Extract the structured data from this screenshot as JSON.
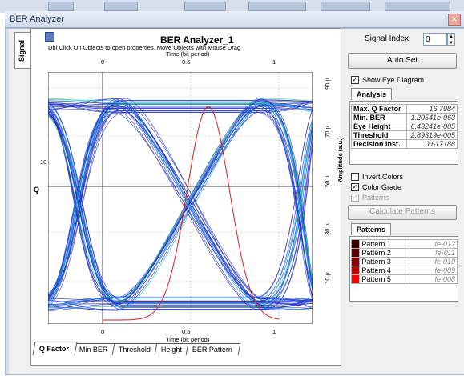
{
  "window": {
    "title": "BER Analyzer"
  },
  "plot": {
    "title": "BER Analyzer_1",
    "hint": "Dbl Click On Objects to open properties.  Move Objects with Mouse Drag",
    "x_axis_title": "Time (bit period)",
    "left_axis_label": "Q",
    "right_axis_label": "Amplitude (a.u.)",
    "x_ticks": [
      "0",
      "0.5",
      "1"
    ],
    "left_ticks": [
      "10"
    ],
    "right_ticks": [
      "90 µ",
      "70 µ",
      "50 µ",
      "30 µ",
      "10 µ"
    ],
    "side_tab": "Signal"
  },
  "bottom_tabs": [
    "Q Factor",
    "Min BER",
    "Threshold",
    "Height",
    "BER Pattern"
  ],
  "signal_index": {
    "label": "Signal Index:",
    "value": "0"
  },
  "auto_set_label": "Auto Set",
  "show_eye": {
    "label": "Show Eye Diagram",
    "checked": true
  },
  "analysis": {
    "tab": "Analysis",
    "rows": [
      {
        "key": "Max. Q Factor",
        "value": "16.7984"
      },
      {
        "key": "Min. BER",
        "value": "1.20541e-063"
      },
      {
        "key": "Eye Height",
        "value": "6.43241e-005"
      },
      {
        "key": "Threshold",
        "value": "2.89319e-005"
      },
      {
        "key": "Decision Inst.",
        "value": "0.617188"
      }
    ]
  },
  "options": {
    "invert": {
      "label": "Invert Colors",
      "checked": false
    },
    "color_grade": {
      "label": "Color Grade",
      "checked": true
    },
    "patterns_check": {
      "label": "Patterns",
      "checked": true,
      "disabled": true
    }
  },
  "calculate_label": "Calculate Patterns",
  "patterns": {
    "tab": "Patterns",
    "rows": [
      {
        "name": "Pattern 1",
        "value": "fe-012",
        "color": "#3a0000"
      },
      {
        "name": "Pattern 2",
        "value": "fe-011",
        "color": "#5e0000"
      },
      {
        "name": "Pattern 3",
        "value": "fe-010",
        "color": "#8a0000"
      },
      {
        "name": "Pattern 4",
        "value": "fe-009",
        "color": "#c20000"
      },
      {
        "name": "Pattern 5",
        "value": "fe-008",
        "color": "#ff0000"
      }
    ]
  },
  "colors": {
    "eye_primary": "#2230c8",
    "eye_secondary": "#19b4e0",
    "eye_hot": "#33e06a",
    "q_curve": "#d42020"
  }
}
